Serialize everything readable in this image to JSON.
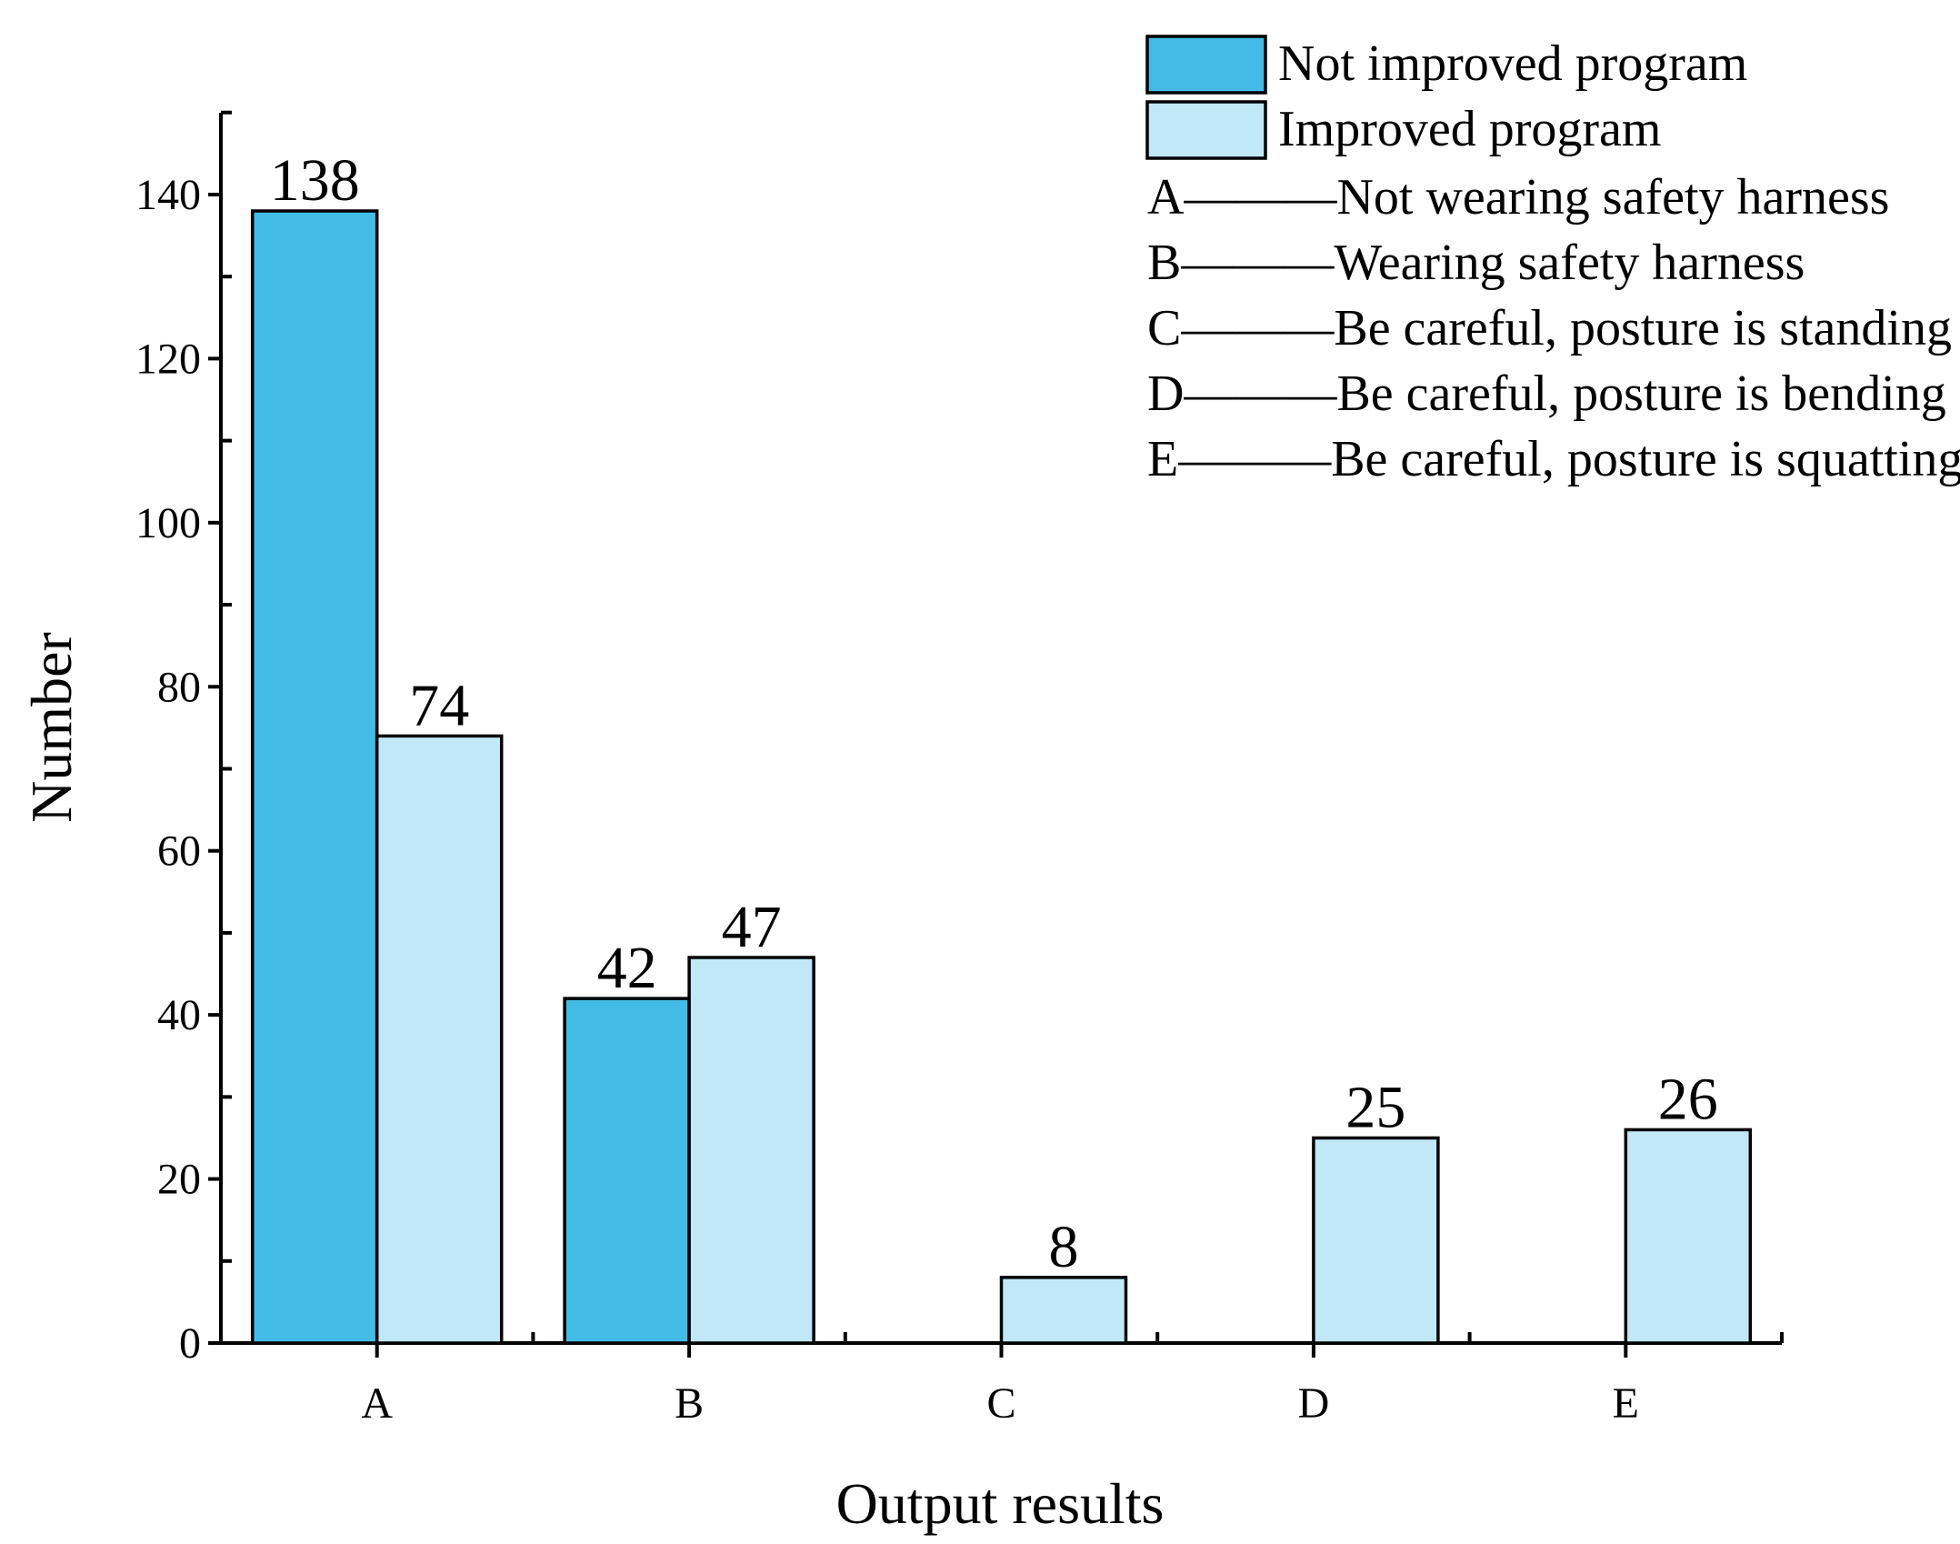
{
  "colors": {
    "not_improved": "#42BCE6",
    "improved": "#C1E8F6",
    "stroke": "#000000"
  },
  "chart_data": {
    "type": "bar",
    "title": "",
    "xlabel": "Output results",
    "ylabel": "Number",
    "ylim": [
      0,
      150
    ],
    "yticks": [
      0,
      20,
      40,
      60,
      80,
      100,
      120,
      140
    ],
    "categories": [
      "A",
      "B",
      "C",
      "D",
      "E"
    ],
    "series": [
      {
        "name": "Not improved program",
        "values": [
          138,
          42,
          null,
          null,
          null
        ]
      },
      {
        "name": "Improved program",
        "values": [
          74,
          47,
          8,
          25,
          26
        ]
      }
    ],
    "legend_position": "top-right",
    "category_descriptions": [
      {
        "key": "A",
        "text": "Not wearing safety harness"
      },
      {
        "key": "B",
        "text": "Wearing safety harness"
      },
      {
        "key": "C",
        "text": "Be careful, posture is standing"
      },
      {
        "key": "D",
        "text": "Be careful, posture is bending"
      },
      {
        "key": "E",
        "text": "Be careful, posture is squatting"
      }
    ],
    "category_separator": "———"
  }
}
